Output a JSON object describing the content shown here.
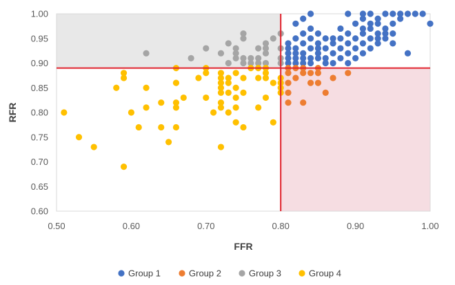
{
  "chart_data": {
    "type": "scatter",
    "title": "",
    "xlabel": "FFR",
    "ylabel": "RFR",
    "xlim": [
      0.5,
      1.0
    ],
    "ylim": [
      0.6,
      1.0
    ],
    "xticks": [
      "0.50",
      "0.60",
      "0.70",
      "0.80",
      "0.90",
      "1.00"
    ],
    "yticks": [
      "0.60",
      "0.65",
      "0.70",
      "0.75",
      "0.80",
      "0.85",
      "0.90",
      "0.95",
      "1.00"
    ],
    "grid": false,
    "thresholds": {
      "ffr": 0.8,
      "rfr": 0.89,
      "line_color": "#e0212b"
    },
    "shaded_regions": [
      {
        "name": "FFR<=0.80 & RFR>0.89",
        "x": [
          0.5,
          0.8
        ],
        "y": [
          0.89,
          1.0
        ],
        "color": "#e8e8e8"
      },
      {
        "name": "FFR>0.80 & RFR<=0.89",
        "x": [
          0.8,
          1.0
        ],
        "y": [
          0.6,
          0.89
        ],
        "color": "#f6dde2"
      }
    ],
    "legend_position": "bottom",
    "series": [
      {
        "name": "Group 1",
        "color": "#4472c4",
        "points": [
          [
            0.81,
            0.91
          ],
          [
            0.81,
            0.92
          ],
          [
            0.81,
            0.93
          ],
          [
            0.81,
            0.94
          ],
          [
            0.81,
            0.9
          ],
          [
            0.82,
            0.91
          ],
          [
            0.82,
            0.92
          ],
          [
            0.82,
            0.93
          ],
          [
            0.82,
            0.95
          ],
          [
            0.82,
            0.98
          ],
          [
            0.82,
            0.9
          ],
          [
            0.83,
            0.91
          ],
          [
            0.83,
            0.92
          ],
          [
            0.83,
            0.94
          ],
          [
            0.83,
            0.96
          ],
          [
            0.83,
            0.99
          ],
          [
            0.83,
            0.9
          ],
          [
            0.84,
            0.91
          ],
          [
            0.84,
            0.93
          ],
          [
            0.84,
            0.95
          ],
          [
            0.84,
            0.97
          ],
          [
            0.84,
            1.0
          ],
          [
            0.84,
            0.9
          ],
          [
            0.85,
            0.91
          ],
          [
            0.85,
            0.92
          ],
          [
            0.85,
            0.93
          ],
          [
            0.85,
            0.94
          ],
          [
            0.85,
            0.96
          ],
          [
            0.86,
            0.9
          ],
          [
            0.86,
            0.91
          ],
          [
            0.86,
            0.93
          ],
          [
            0.86,
            0.95
          ],
          [
            0.87,
            0.9
          ],
          [
            0.87,
            0.92
          ],
          [
            0.87,
            0.94
          ],
          [
            0.87,
            0.95
          ],
          [
            0.88,
            0.91
          ],
          [
            0.88,
            0.93
          ],
          [
            0.88,
            0.95
          ],
          [
            0.88,
            0.97
          ],
          [
            0.89,
            0.9
          ],
          [
            0.89,
            0.92
          ],
          [
            0.89,
            0.94
          ],
          [
            0.89,
            0.96
          ],
          [
            0.89,
            1.0
          ],
          [
            0.9,
            0.91
          ],
          [
            0.9,
            0.93
          ],
          [
            0.9,
            0.95
          ],
          [
            0.9,
            0.98
          ],
          [
            0.91,
            0.92
          ],
          [
            0.91,
            0.94
          ],
          [
            0.91,
            0.96
          ],
          [
            0.91,
            0.97
          ],
          [
            0.91,
            0.99
          ],
          [
            0.91,
            1.0
          ],
          [
            0.92,
            0.93
          ],
          [
            0.92,
            0.95
          ],
          [
            0.92,
            0.97
          ],
          [
            0.92,
            0.98
          ],
          [
            0.92,
            1.0
          ],
          [
            0.93,
            0.94
          ],
          [
            0.93,
            0.95
          ],
          [
            0.93,
            0.96
          ],
          [
            0.93,
            0.98
          ],
          [
            0.93,
            0.99
          ],
          [
            0.94,
            0.95
          ],
          [
            0.94,
            0.96
          ],
          [
            0.94,
            0.97
          ],
          [
            0.94,
            1.0
          ],
          [
            0.95,
            0.94
          ],
          [
            0.95,
            0.96
          ],
          [
            0.95,
            0.98
          ],
          [
            0.95,
            1.0
          ],
          [
            0.96,
            0.99
          ],
          [
            0.96,
            1.0
          ],
          [
            0.97,
            0.92
          ],
          [
            0.97,
            1.0
          ],
          [
            0.98,
            1.0
          ],
          [
            0.99,
            1.0
          ],
          [
            1.0,
            0.98
          ]
        ]
      },
      {
        "name": "Group 2",
        "color": "#ed7d31",
        "points": [
          [
            0.81,
            0.82
          ],
          [
            0.81,
            0.84
          ],
          [
            0.81,
            0.86
          ],
          [
            0.81,
            0.88
          ],
          [
            0.81,
            0.89
          ],
          [
            0.82,
            0.87
          ],
          [
            0.82,
            0.89
          ],
          [
            0.83,
            0.82
          ],
          [
            0.83,
            0.88
          ],
          [
            0.83,
            0.89
          ],
          [
            0.84,
            0.86
          ],
          [
            0.84,
            0.88
          ],
          [
            0.85,
            0.86
          ],
          [
            0.85,
            0.88
          ],
          [
            0.85,
            0.89
          ],
          [
            0.86,
            0.84
          ],
          [
            0.87,
            0.87
          ],
          [
            0.89,
            0.88
          ]
        ]
      },
      {
        "name": "Group 3",
        "color": "#a5a5a5",
        "points": [
          [
            0.62,
            0.92
          ],
          [
            0.68,
            0.91
          ],
          [
            0.7,
            0.93
          ],
          [
            0.72,
            0.92
          ],
          [
            0.73,
            0.9
          ],
          [
            0.73,
            0.94
          ],
          [
            0.74,
            0.91
          ],
          [
            0.74,
            0.92
          ],
          [
            0.74,
            0.93
          ],
          [
            0.75,
            0.9
          ],
          [
            0.75,
            0.91
          ],
          [
            0.75,
            0.95
          ],
          [
            0.75,
            0.96
          ],
          [
            0.76,
            0.9
          ],
          [
            0.76,
            0.91
          ],
          [
            0.77,
            0.9
          ],
          [
            0.77,
            0.91
          ],
          [
            0.77,
            0.93
          ],
          [
            0.78,
            0.9
          ],
          [
            0.78,
            0.92
          ],
          [
            0.78,
            0.93
          ],
          [
            0.78,
            0.94
          ],
          [
            0.79,
            0.95
          ],
          [
            0.8,
            0.9
          ],
          [
            0.8,
            0.91
          ],
          [
            0.8,
            0.93
          ],
          [
            0.8,
            0.96
          ]
        ]
      },
      {
        "name": "Group 4",
        "color": "#ffc000",
        "points": [
          [
            0.51,
            0.8
          ],
          [
            0.53,
            0.75
          ],
          [
            0.55,
            0.73
          ],
          [
            0.58,
            0.85
          ],
          [
            0.59,
            0.87
          ],
          [
            0.59,
            0.88
          ],
          [
            0.59,
            0.69
          ],
          [
            0.6,
            0.8
          ],
          [
            0.61,
            0.77
          ],
          [
            0.62,
            0.81
          ],
          [
            0.62,
            0.85
          ],
          [
            0.64,
            0.82
          ],
          [
            0.64,
            0.77
          ],
          [
            0.65,
            0.74
          ],
          [
            0.66,
            0.89
          ],
          [
            0.66,
            0.86
          ],
          [
            0.66,
            0.82
          ],
          [
            0.66,
            0.81
          ],
          [
            0.66,
            0.77
          ],
          [
            0.67,
            0.83
          ],
          [
            0.69,
            0.87
          ],
          [
            0.7,
            0.89
          ],
          [
            0.7,
            0.88
          ],
          [
            0.7,
            0.83
          ],
          [
            0.71,
            0.8
          ],
          [
            0.72,
            0.88
          ],
          [
            0.72,
            0.87
          ],
          [
            0.72,
            0.86
          ],
          [
            0.72,
            0.85
          ],
          [
            0.72,
            0.84
          ],
          [
            0.72,
            0.82
          ],
          [
            0.72,
            0.81
          ],
          [
            0.72,
            0.73
          ],
          [
            0.73,
            0.87
          ],
          [
            0.73,
            0.86
          ],
          [
            0.73,
            0.84
          ],
          [
            0.73,
            0.8
          ],
          [
            0.74,
            0.88
          ],
          [
            0.74,
            0.85
          ],
          [
            0.74,
            0.83
          ],
          [
            0.74,
            0.81
          ],
          [
            0.74,
            0.78
          ],
          [
            0.75,
            0.87
          ],
          [
            0.75,
            0.84
          ],
          [
            0.75,
            0.77
          ],
          [
            0.76,
            0.89
          ],
          [
            0.77,
            0.89
          ],
          [
            0.77,
            0.87
          ],
          [
            0.77,
            0.81
          ],
          [
            0.78,
            0.89
          ],
          [
            0.78,
            0.88
          ],
          [
            0.78,
            0.87
          ],
          [
            0.78,
            0.83
          ],
          [
            0.79,
            0.86
          ],
          [
            0.79,
            0.78
          ],
          [
            0.8,
            0.87
          ],
          [
            0.8,
            0.86
          ],
          [
            0.8,
            0.85
          ],
          [
            0.8,
            0.84
          ]
        ]
      }
    ]
  }
}
